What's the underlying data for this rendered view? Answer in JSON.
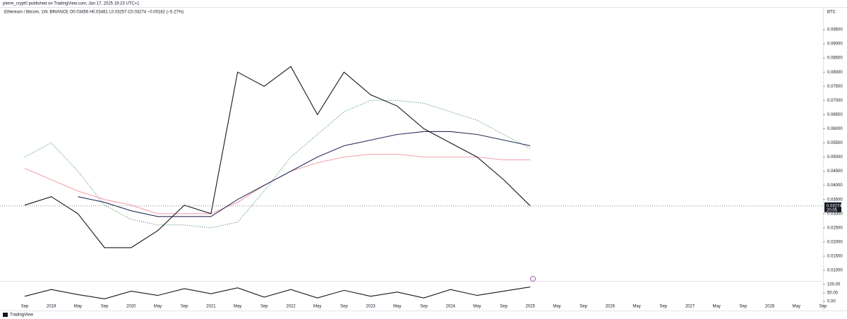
{
  "header": {
    "publisher": "pierre_crypt0 published on TradingView.com, Jan 17, 2025 19:23 UTC+1",
    "symbol": "Ethereum / Bitcoin, 1W, BINANCE  O0.03456  H0.03481  L0.03257  C0.03274  −0.00182 (−5.27%)",
    "currency": "BTC",
    "countdown": "20:05",
    "footer": "TradingView"
  },
  "chart_data": [
    {
      "type": "line",
      "categories": [
        "Sep",
        "2019",
        "May",
        "Sep",
        "2020",
        "May",
        "Sep",
        "2021",
        "May",
        "Sep",
        "2022",
        "May",
        "Sep",
        "2023",
        "May",
        "Sep",
        "2024",
        "May",
        "Sep",
        "2025",
        "May",
        "Sep",
        "2026",
        "May",
        "Sep",
        "2027",
        "May",
        "Sep",
        "2028",
        "May",
        "Sep"
      ],
      "series": [
        {
          "color": "#2e7d5b",
          "style": "dotted",
          "values": [
            0.05,
            0.055,
            0.045,
            0.033,
            0.028,
            0.026,
            0.026,
            0.025,
            0.027,
            0.038,
            0.05,
            0.058,
            0.066,
            0.07,
            0.07,
            0.069,
            0.066,
            0.063,
            0.058,
            0.053,
            null,
            null,
            null,
            null,
            null,
            null,
            null,
            null,
            null,
            null,
            null
          ]
        },
        {
          "color": "#f4a3ad",
          "style": "solid",
          "values": [
            0.046,
            0.042,
            0.038,
            0.035,
            0.033,
            0.03,
            0.03,
            0.03,
            0.034,
            0.04,
            0.045,
            0.048,
            0.05,
            0.051,
            0.051,
            0.05,
            0.05,
            0.05,
            0.049,
            0.049,
            null,
            null,
            null,
            null,
            null,
            null,
            null,
            null,
            null,
            null,
            null
          ]
        },
        {
          "color": "#2a2e5a",
          "style": "solid",
          "values": [
            null,
            null,
            0.036,
            0.034,
            0.031,
            0.029,
            0.029,
            0.029,
            0.035,
            0.04,
            0.045,
            0.05,
            0.054,
            0.056,
            0.058,
            0.059,
            0.059,
            0.058,
            0.056,
            0.054,
            null,
            null,
            null,
            null,
            null,
            null,
            null,
            null,
            null,
            null,
            null
          ]
        },
        {
          "color": "#131722",
          "style": "solid",
          "values": [
            0.033,
            0.036,
            0.03,
            0.018,
            0.018,
            0.024,
            0.033,
            0.03,
            0.08,
            0.075,
            0.082,
            0.065,
            0.08,
            0.072,
            0.068,
            0.06,
            0.055,
            0.05,
            0.042,
            0.03274,
            null,
            null,
            null,
            null,
            null,
            null,
            null,
            null,
            null,
            null,
            null
          ]
        }
      ],
      "last_price": 0.03274,
      "ylim": [
        0.007,
        0.1
      ],
      "yticks": [
        {
          "value": 0.01,
          "label": "0.01000"
        },
        {
          "value": 0.015,
          "label": "0.01500"
        },
        {
          "value": 0.02,
          "label": "0.02000"
        },
        {
          "value": 0.025,
          "label": "0.02500"
        },
        {
          "value": 0.03,
          "label": "0.03000"
        },
        {
          "value": 0.035,
          "label": "0.03500"
        },
        {
          "value": 0.04,
          "label": "0.04000"
        },
        {
          "value": 0.045,
          "label": "0.04500"
        },
        {
          "value": 0.05,
          "label": "0.05000"
        },
        {
          "value": 0.055,
          "label": "0.05500"
        },
        {
          "value": 0.06,
          "label": "0.06000"
        },
        {
          "value": 0.065,
          "label": "0.06500"
        },
        {
          "value": 0.07,
          "label": "0.07000"
        },
        {
          "value": 0.075,
          "label": "0.07500"
        },
        {
          "value": 0.08,
          "label": "0.08000"
        },
        {
          "value": 0.085,
          "label": "0.08500"
        },
        {
          "value": 0.09,
          "label": "0.09000"
        },
        {
          "value": 0.095,
          "label": "0.09500"
        }
      ]
    },
    {
      "type": "line",
      "series": [
        {
          "color": "#131722",
          "style": "solid",
          "values": [
            30,
            70,
            40,
            15,
            60,
            35,
            75,
            45,
            80,
            25,
            70,
            20,
            65,
            30,
            55,
            20,
            70,
            35,
            60,
            85,
            null,
            null,
            null,
            null,
            null,
            null,
            null,
            null,
            null,
            null,
            null
          ]
        }
      ],
      "ylim": [
        0,
        100
      ],
      "yticks": [
        {
          "value": 0,
          "label": "0.00"
        },
        {
          "value": 50,
          "label": "50.00"
        },
        {
          "value": 100,
          "label": "100.00"
        }
      ]
    }
  ]
}
